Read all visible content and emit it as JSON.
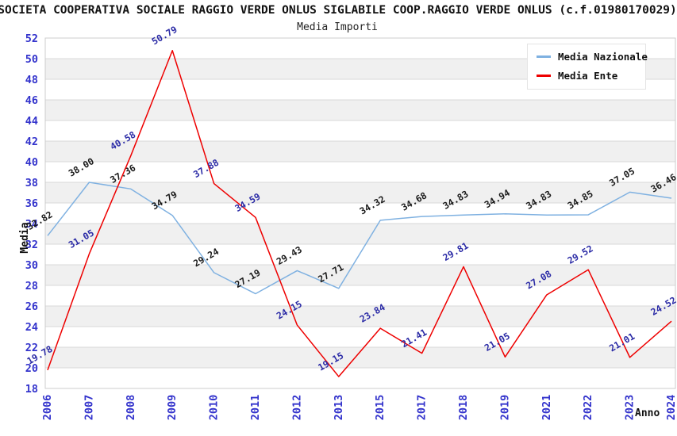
{
  "header": {
    "title": "SOCIETA COOPERATIVA SOCIALE RAGGIO VERDE ONLUS SIGLABILE COOP.RAGGIO VERDE ONLUS (c.f.01980170029)",
    "subtitle": "Media Importi"
  },
  "chart_data": {
    "type": "line",
    "title": "SOCIETA COOPERATIVA SOCIALE RAGGIO VERDE ONLUS SIGLABILE COOP.RAGGIO VERDE ONLUS (c.f.01980170029)",
    "subtitle": "Media Importi",
    "xlabel": "Anno",
    "ylabel": "Media",
    "categories": [
      "2006",
      "2007",
      "2008",
      "2009",
      "2010",
      "2011",
      "2012",
      "2013",
      "2015",
      "2017",
      "2018",
      "2019",
      "2021",
      "2022",
      "2023",
      "2024"
    ],
    "series": [
      {
        "name": "Media Nazionale",
        "color": "#7FB1E1",
        "label_color": "#1a1a1a",
        "values": [
          32.82,
          38.0,
          37.36,
          34.79,
          29.24,
          27.19,
          29.43,
          27.71,
          34.32,
          34.68,
          34.83,
          34.94,
          34.83,
          34.85,
          37.05,
          36.46
        ]
      },
      {
        "name": "Media Ente",
        "color": "#EE0000",
        "label_color": "#2B2BA6",
        "values": [
          19.78,
          31.05,
          40.58,
          50.79,
          37.88,
          34.59,
          24.15,
          19.15,
          23.84,
          21.41,
          29.81,
          21.05,
          27.08,
          29.52,
          21.01,
          24.52
        ]
      }
    ],
    "ylim": [
      18,
      52
    ],
    "ytick_step": 2,
    "grid": "horizontal-bands",
    "legend_position": "top-right",
    "colors": {
      "axis_tick_text": "#3333CC",
      "band_fill": "#F0F0F0",
      "gridline": "#D9D9D9",
      "plot_border": "#CCCCCC",
      "title_text": "#111111"
    }
  },
  "legend": {
    "items": [
      {
        "label": "Media Nazionale"
      },
      {
        "label": "Media Ente"
      }
    ]
  }
}
